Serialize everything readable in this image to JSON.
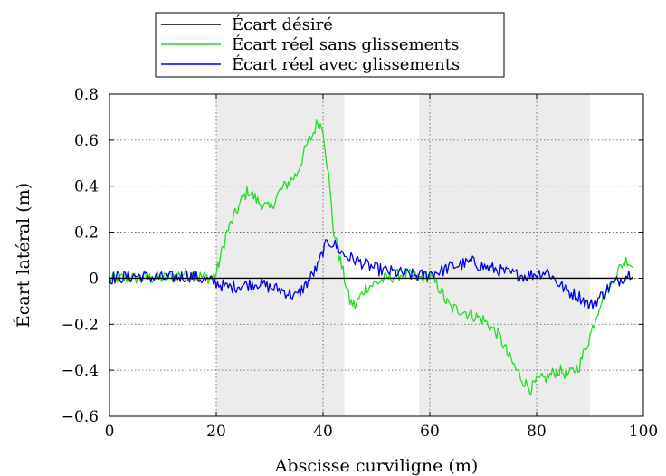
{
  "chart_data": {
    "type": "line",
    "title": "",
    "xlabel": "Abscisse curviligne (m)",
    "ylabel": "Écart latéral (m)",
    "xlim": [
      0,
      100
    ],
    "ylim": [
      -0.6,
      0.8
    ],
    "xticks": [
      0,
      20,
      40,
      60,
      80,
      100
    ],
    "xtick_labels": [
      "0",
      "20",
      "40",
      "60",
      "80",
      "100"
    ],
    "yticks": [
      -0.6,
      -0.4,
      -0.2,
      0,
      0.2,
      0.4,
      0.6,
      0.8
    ],
    "ytick_labels": [
      "−0.6",
      "−0.4",
      "−0.2",
      "0",
      "0.2",
      "0.4",
      "0.6",
      "0.8"
    ],
    "grid": true,
    "legend_position": "top-center, above plot",
    "shaded_regions": [
      {
        "x0": 20,
        "x1": 44,
        "color": "#ececec"
      },
      {
        "x0": 58,
        "x1": 90,
        "color": "#ececec"
      }
    ],
    "series": [
      {
        "name": "Écart désiré",
        "color": "#000000",
        "x": [
          0,
          98
        ],
        "values": [
          0,
          0
        ]
      },
      {
        "name": "Écart réel sans glissements",
        "color": "#22dd22",
        "x": [
          0,
          10,
          14,
          19,
          20,
          22,
          25,
          26,
          28,
          30,
          32,
          35,
          37,
          38,
          39,
          40,
          41,
          42,
          44,
          45,
          46,
          47,
          48,
          50,
          52,
          55,
          58,
          60,
          61,
          62,
          63,
          64,
          66,
          70,
          73,
          75,
          77,
          78,
          79,
          80,
          82,
          84,
          86,
          88,
          90,
          92,
          94,
          95,
          96,
          97,
          98
        ],
        "values": [
          0,
          0,
          0.02,
          0,
          0.02,
          0.2,
          0.35,
          0.38,
          0.33,
          0.3,
          0.38,
          0.45,
          0.58,
          0.62,
          0.68,
          0.65,
          0.45,
          0.2,
          0,
          -0.1,
          -0.12,
          -0.08,
          -0.04,
          -0.02,
          0,
          0.02,
          0,
          0.01,
          -0.02,
          -0.05,
          -0.1,
          -0.13,
          -0.14,
          -0.18,
          -0.25,
          -0.35,
          -0.43,
          -0.46,
          -0.48,
          -0.45,
          -0.43,
          -0.4,
          -0.42,
          -0.38,
          -0.25,
          -0.1,
          -0.02,
          0.02,
          0.06,
          0.08,
          0.05
        ]
      },
      {
        "name": "Écart réel avec glissements",
        "color": "#0000ee",
        "x": [
          0,
          5,
          10,
          15,
          20,
          22,
          25,
          28,
          30,
          32,
          35,
          37,
          39,
          40,
          41,
          42,
          44,
          46,
          48,
          50,
          52,
          55,
          58,
          60,
          62,
          64,
          66,
          68,
          70,
          72,
          75,
          78,
          80,
          82,
          84,
          86,
          88,
          90,
          92,
          94,
          96,
          98
        ],
        "values": [
          0,
          0.01,
          0,
          0.01,
          -0.02,
          -0.04,
          -0.03,
          -0.02,
          -0.04,
          -0.05,
          -0.08,
          -0.02,
          0.05,
          0.12,
          0.16,
          0.15,
          0.1,
          0.08,
          0.06,
          0.04,
          0.03,
          0.02,
          0.01,
          0.02,
          0.03,
          0.05,
          0.06,
          0.07,
          0.05,
          0.04,
          0.02,
          0.01,
          0.02,
          0.03,
          -0.02,
          -0.06,
          -0.08,
          -0.12,
          -0.08,
          -0.03,
          0,
          0.03
        ]
      }
    ]
  }
}
